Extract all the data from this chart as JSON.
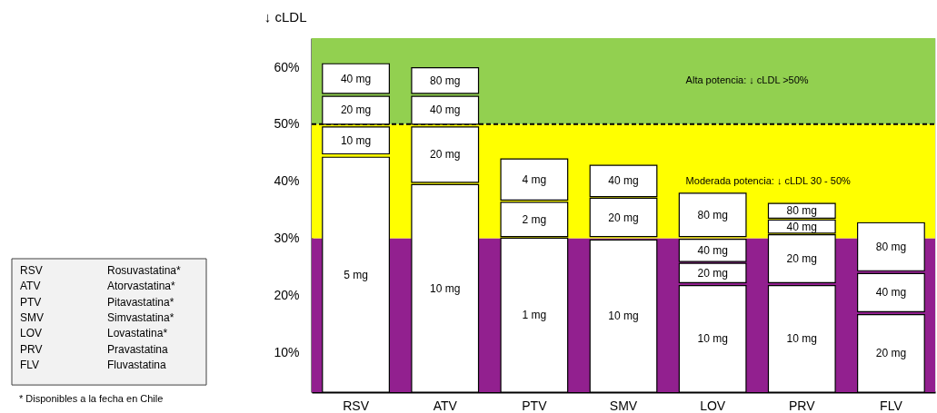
{
  "chart_data": {
    "type": "bar",
    "ylabel": "↓ cLDL",
    "categories": [
      "RSV",
      "ATV",
      "PTV",
      "SMV",
      "LOV",
      "PRV",
      "FLV"
    ],
    "series": [
      {
        "color": "#ffffff",
        "base": [
          3,
          3,
          3,
          3,
          3,
          3,
          3
        ],
        "values": [
          41.2,
          36.4,
          27.0,
          26.7,
          18.7,
          18.7,
          13.6
        ]
      },
      {
        "color": "#ffffff",
        "base": [
          44.8,
          39.8,
          30.3,
          30.3,
          22.2,
          22.2,
          17.1
        ],
        "values": [
          4.7,
          9.7,
          6.0,
          6.7,
          3.4,
          8.4,
          6.7
        ]
      },
      {
        "color": "#ffffff",
        "base": [
          50.0,
          50.0,
          36.7,
          37.3,
          25.9,
          30.9,
          24.3
        ],
        "values": [
          4.9,
          4.9,
          7.2,
          5.5,
          3.9,
          2.3,
          8.4
        ]
      },
      {
        "color": "#ffffff",
        "base": [
          55.4,
          55.4,
          null,
          null,
          30.3,
          33.5,
          null
        ],
        "values": [
          5.2,
          4.5,
          null,
          null,
          7.6,
          2.6,
          null
        ]
      }
    ],
    "ylim": [
      3,
      65.1
    ],
    "yticks": [
      {
        "value": 10,
        "label": "10%"
      },
      {
        "value": 20,
        "label": "20%"
      },
      {
        "value": 30,
        "label": "30%"
      },
      {
        "value": 40,
        "label": "40%"
      },
      {
        "value": 50,
        "label": "50%"
      },
      {
        "value": 60,
        "label": "60%"
      }
    ],
    "bands": [
      {
        "axis": "y",
        "from": 3,
        "to": 30,
        "color": "#92208f"
      },
      {
        "axis": "y",
        "from": 30,
        "to": 50,
        "color": "#ffff00",
        "label": "Moderada potencia: ↓ cLDL 30 - 50%"
      },
      {
        "axis": "y",
        "from": 50,
        "to": 65.1,
        "color": "#92d050",
        "label": "Alta potencia: ↓ cLDL >50%"
      }
    ],
    "ref_lines": [
      {
        "axis": "y",
        "value": 50,
        "line_style": "dashed",
        "color": "#000000"
      }
    ],
    "annotations": [
      "5 mg",
      "10 mg",
      "1 mg",
      "10 mg",
      "10 mg",
      "10 mg",
      "20 mg",
      "10 mg",
      "20 mg",
      "2 mg",
      "20 mg",
      "20 mg",
      "20 mg",
      "40 mg",
      "20 mg",
      "40 mg",
      "4 mg",
      "40 mg",
      "40 mg",
      "40 mg",
      "80 mg",
      "40 mg",
      "80 mg",
      "80 mg",
      "80 mg",
      "RSV Rosuvastatina*",
      "ATV Atorvastatina*",
      "PTV Pitavastatina*",
      "SMV Simvastatina*",
      "LOV Lovastatina*",
      "PRV Pravastatina",
      "FLV Fluvastatina",
      "* Disponibles a la fecha en Chile"
    ]
  }
}
